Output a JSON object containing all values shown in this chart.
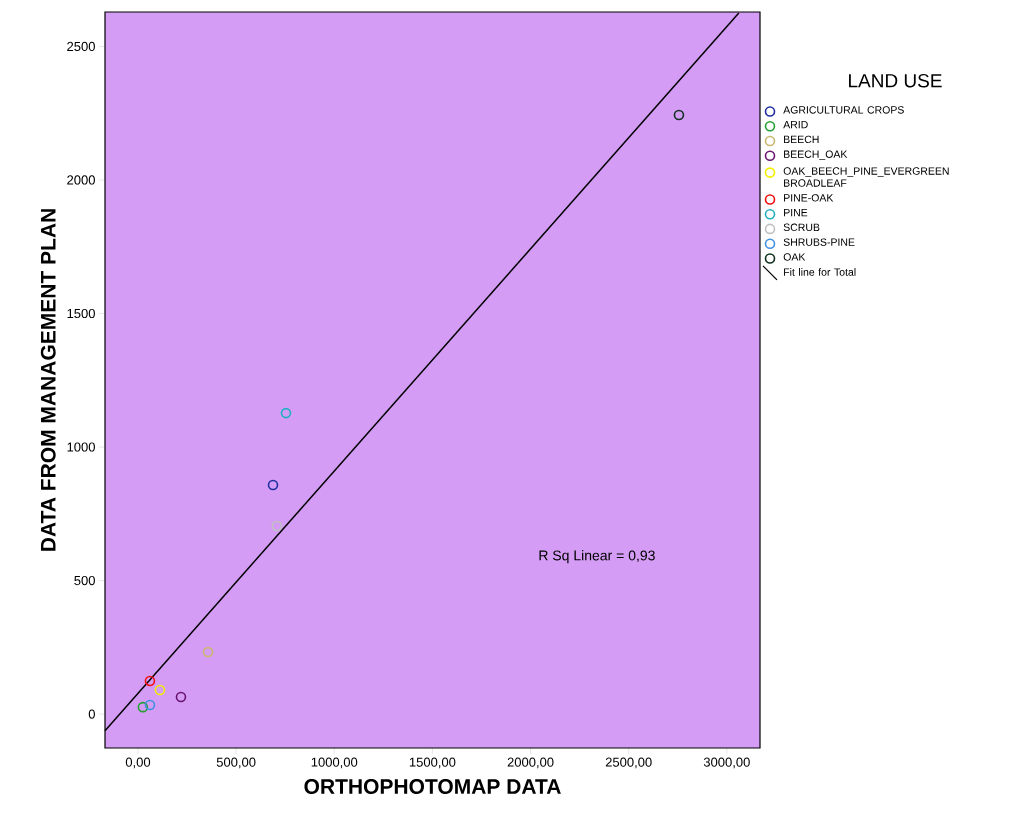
{
  "chart_data": {
    "type": "scatter",
    "xlabel": "ORTHOPHOTOMAP DATA",
    "ylabel": "DATA FROM MANAGEMENT PLAN",
    "legend_title": "LAND USE",
    "legend": "right",
    "grid": false,
    "marker": "circle",
    "annotations": [
      "R Sq Linear = 0,93"
    ],
    "xlim": [
      -168,
      3169
    ],
    "ylim": [
      -127,
      2629
    ],
    "xticks": [
      {
        "value": 0,
        "label": "0,00"
      },
      {
        "value": 500,
        "label": "500,00"
      },
      {
        "value": 1000,
        "label": "1000,00"
      },
      {
        "value": 1500,
        "label": "1500,00"
      },
      {
        "value": 2000,
        "label": "2000,00"
      },
      {
        "value": 2500,
        "label": "2500,00"
      },
      {
        "value": 3000,
        "label": "3000,00"
      }
    ],
    "yticks": [
      0,
      500,
      1000,
      1500,
      2000,
      2500
    ],
    "series": [
      {
        "name": "AGRICULTURAL CROPS",
        "color": "#1f2fa0",
        "x": [
          688
        ],
        "values": [
          858
        ]
      },
      {
        "name": "ARID",
        "color": "#22a030",
        "x": [
          25
        ],
        "values": [
          26
        ]
      },
      {
        "name": "BEECH",
        "color": "#c8b870",
        "x": [
          357
        ],
        "values": [
          232
        ]
      },
      {
        "name": "BEECH_OAK",
        "color": "#6a1470",
        "x": [
          219
        ],
        "values": [
          64
        ]
      },
      {
        "name": "OAK_BEECH_PINE_EVERGREEN BROADLEAF",
        "color": "#f0f000",
        "x": [
          112
        ],
        "values": [
          90
        ]
      },
      {
        "name": "PINE-OAK",
        "color": "#f01010",
        "x": [
          61
        ],
        "values": [
          124
        ]
      },
      {
        "name": "PINE",
        "color": "#20b0c0",
        "x": [
          754
        ],
        "values": [
          1127
        ]
      },
      {
        "name": "SCRUB",
        "color": "#c0c0c0",
        "x": [
          708
        ],
        "values": [
          704
        ]
      },
      {
        "name": "SHRUBS-PINE",
        "color": "#4090e0",
        "x": [
          61
        ],
        "values": [
          34
        ]
      },
      {
        "name": "OAK",
        "color": "#103020",
        "x": [
          2756
        ],
        "values": [
          2243
        ]
      },
      {
        "name": "Fit line for Total",
        "type": "line",
        "marker": "none",
        "color": "#000000",
        "x": [
          -168,
          3061
        ],
        "values": [
          -62,
          2625
        ]
      }
    ]
  }
}
